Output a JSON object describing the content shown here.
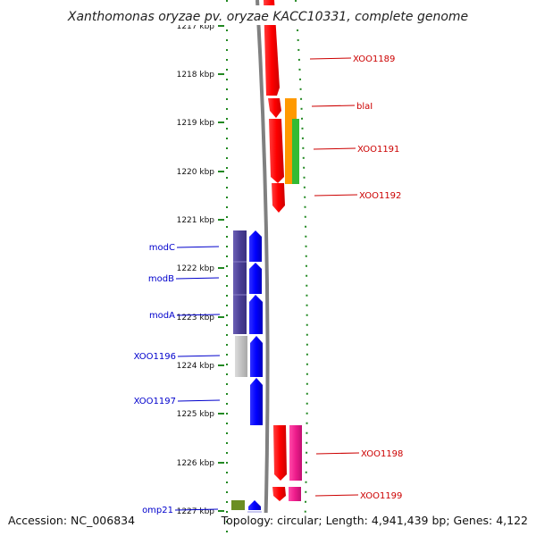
{
  "title": "Xanthomonas oryzae pv. oryzae KACC10331, complete genome",
  "footer": {
    "accession": "Accession: NC_006834",
    "summary": "Topology: circular; Length: 4,941,439 bp; Genes: 4,122"
  },
  "ticks": [
    "1217 kbp",
    "1218 kbp",
    "1219 kbp",
    "1220 kbp",
    "1221 kbp",
    "1222 kbp",
    "1223 kbp",
    "1224 kbp",
    "1225 kbp",
    "1226 kbp",
    "1227 kbp"
  ],
  "genes_right": [
    "XOO1189",
    "blaI",
    "XOO1191",
    "XOO1192",
    "XOO1198",
    "XOO1199"
  ],
  "genes_left": [
    "modC",
    "modB",
    "modA",
    "XOO1196",
    "XOO1197",
    "omp21"
  ],
  "colors": {
    "forward_label": "#cc0000",
    "reverse_label": "#0000cc",
    "cds_forward": "#ff0000",
    "cds_reverse": "#0000ff",
    "mod_operon": "#4b3f96",
    "orange_feature": "#ff9900",
    "green_feature": "#33bb33",
    "pink_feature": "#ee1c8c",
    "grey_feature": "#c0c0c0",
    "olive_feature": "#6b8e23",
    "backbone": "#808080",
    "dotted_ring": "#228822"
  }
}
